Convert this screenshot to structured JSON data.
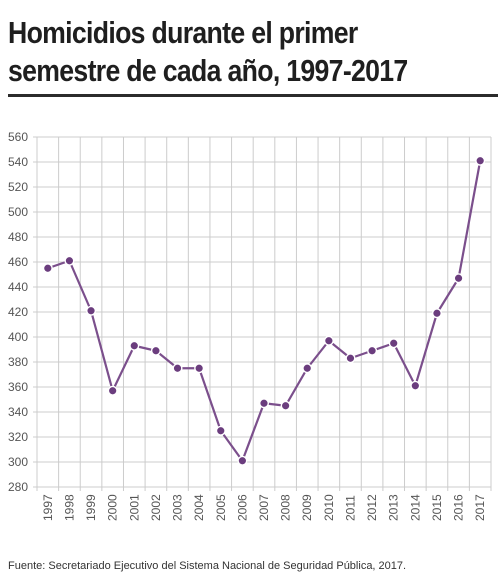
{
  "title_line1": "Homicidios durante el primer",
  "title_line2": "semestre de cada año, 1997-2017",
  "source": "Fuente: Secretariado Ejecutivo del Sistema Nacional de Seguridad Pública, 2017.",
  "colors": {
    "line": "#7b4f8c",
    "marker": "#6b3d7e",
    "grid": "#cccccc"
  },
  "chart_data": {
    "type": "line",
    "title": "Homicidios durante el primer semestre de cada año, 1997-2017",
    "xlabel": "",
    "ylabel": "",
    "ylim": [
      280,
      560
    ],
    "yticks": [
      280,
      300,
      320,
      340,
      360,
      380,
      400,
      420,
      440,
      460,
      480,
      500,
      520,
      540,
      560
    ],
    "categories": [
      "1997",
      "1998",
      "1999",
      "2000",
      "2001",
      "2002",
      "2003",
      "2004",
      "2005",
      "2006",
      "2007",
      "2008",
      "2009",
      "2010",
      "2011",
      "2012",
      "2013",
      "2014",
      "2015",
      "2016",
      "2017"
    ],
    "series": [
      {
        "values": [
          455,
          461,
          421,
          357,
          393,
          389,
          375,
          375,
          325,
          301,
          347,
          345,
          375,
          397,
          383,
          389,
          395,
          361,
          419,
          447,
          541
        ]
      }
    ],
    "grid": true,
    "legend": "none"
  }
}
